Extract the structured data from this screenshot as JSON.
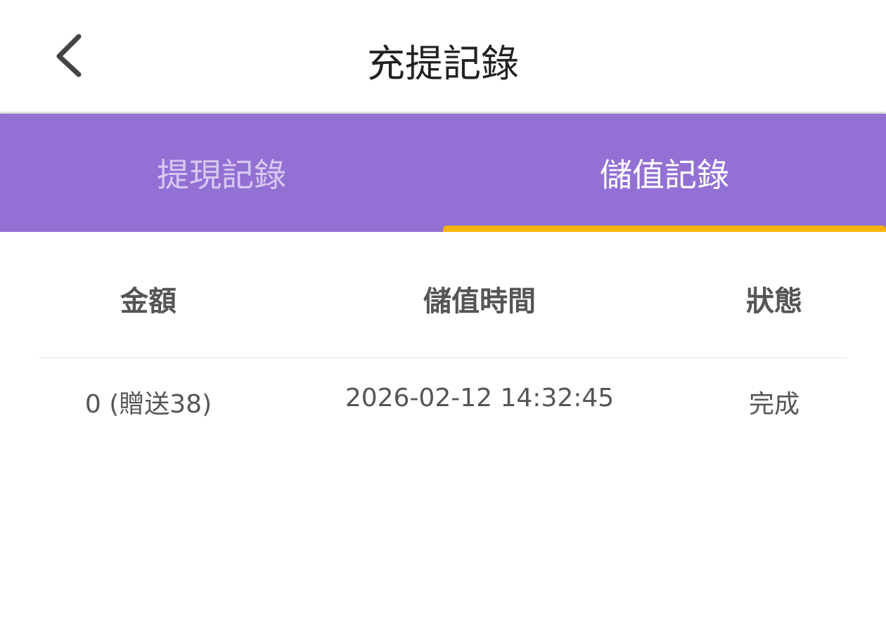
{
  "header": {
    "title": "充提記錄",
    "back_icon": "chevron-left-icon"
  },
  "tabs": [
    {
      "label": "提現記錄",
      "active": false
    },
    {
      "label": "儲值記錄",
      "active": true
    }
  ],
  "colors": {
    "tab_bar": "#9370D4",
    "indicator": "#F5B40A"
  },
  "table": {
    "columns": [
      "金額",
      "儲值時間",
      "狀態"
    ],
    "rows": [
      [
        "0 (贈送38)",
        "2026-02-12 14:32:45",
        "完成"
      ]
    ]
  }
}
